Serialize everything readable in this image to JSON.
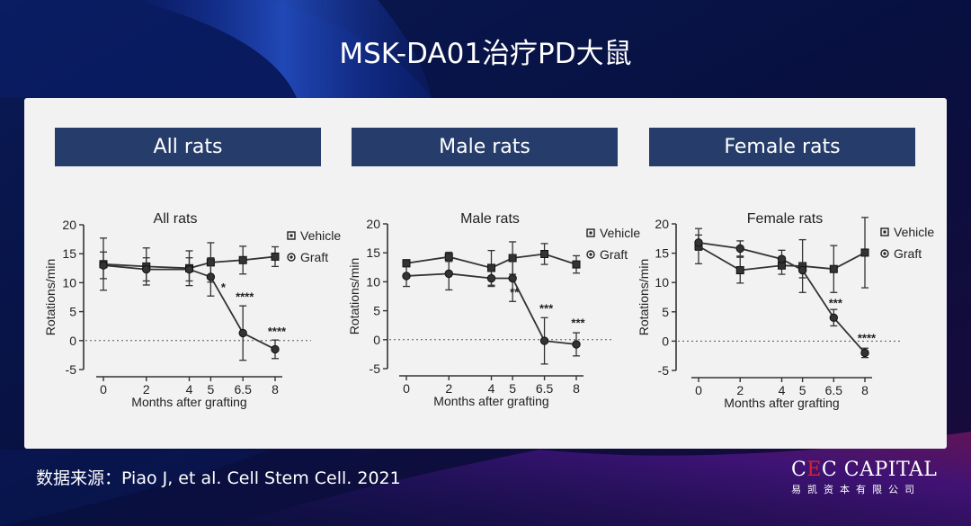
{
  "page": {
    "title": "MSK-DA01治疗PD大鼠"
  },
  "headers": [
    "All rats",
    "Male rats",
    "Female rats"
  ],
  "source": "数据来源：Piao J, et al. Cell Stem Cell. 2021",
  "logo": {
    "prefix": "C",
    "accent": "E",
    "suffix": "C CAPITAL",
    "sub": "易凯资本有限公司"
  },
  "colors": {
    "header": "#263d6b",
    "card": "#f2f2f2",
    "accent": "#d6232d"
  },
  "chart_data": [
    {
      "type": "line",
      "title": "All rats",
      "xlabel": "Months after grafting",
      "ylabel": "Rotations/min",
      "x": [
        0,
        2,
        4,
        5,
        6.5,
        8
      ],
      "xticks": [
        "0",
        "2",
        "4",
        "5",
        "6.5",
        "8"
      ],
      "yticks": [
        -5,
        0,
        5,
        10,
        15,
        20
      ],
      "ylim": [
        -5,
        20
      ],
      "reference_line": 0,
      "series": [
        {
          "name": "Vehicle",
          "marker": "square",
          "x": [
            0,
            2,
            4,
            5,
            6.5,
            8
          ],
          "values": [
            13.2,
            12.8,
            12.5,
            13.5,
            13.9,
            14.5
          ],
          "err": [
            4.5,
            3.2,
            3.0,
            3.4,
            2.4,
            1.7
          ]
        },
        {
          "name": "Graft",
          "marker": "circle",
          "x": [
            0,
            2,
            4,
            5,
            6.5,
            8
          ],
          "values": [
            13.0,
            12.3,
            12.3,
            11.0,
            1.3,
            -1.5
          ],
          "err": [
            2.3,
            2.0,
            2.0,
            3.3,
            4.7,
            1.6
          ]
        }
      ],
      "annotations": [
        {
          "x": 5,
          "text": "*",
          "y": 8.5
        },
        {
          "x": 6.5,
          "text": "****",
          "y": 6.9
        },
        {
          "x": 8,
          "text": "****",
          "y": 0.9
        }
      ]
    },
    {
      "type": "line",
      "title": "Male rats",
      "xlabel": "Months after grafting",
      "ylabel": "Rotations/min",
      "x": [
        0,
        2,
        4,
        5,
        6.5,
        8
      ],
      "xticks": [
        "0",
        "2",
        "4",
        "5",
        "6.5",
        "8"
      ],
      "yticks": [
        -5,
        0,
        5,
        10,
        15,
        20
      ],
      "ylim": [
        -5,
        20
      ],
      "reference_line": 0,
      "series": [
        {
          "name": "Vehicle",
          "marker": "square",
          "x": [
            0,
            2,
            4,
            5,
            6.5,
            8
          ],
          "values": [
            13.2,
            14.3,
            12.4,
            14.1,
            14.8,
            13.0
          ],
          "err": [
            0.6,
            0.8,
            3.0,
            2.8,
            1.8,
            1.5
          ]
        },
        {
          "name": "Graft",
          "marker": "circle",
          "x": [
            0,
            2,
            4,
            5,
            6.5,
            8
          ],
          "values": [
            11.0,
            11.4,
            10.6,
            10.6,
            -0.2,
            -0.8
          ],
          "err": [
            1.8,
            2.8,
            1.4,
            4.0,
            4.0,
            2.0
          ]
        }
      ],
      "annotations": [
        {
          "x": 5,
          "text": "**",
          "y": 7.5
        },
        {
          "x": 6.5,
          "text": "***",
          "y": 4.7
        },
        {
          "x": 8,
          "text": "***",
          "y": 2.2
        }
      ]
    },
    {
      "type": "line",
      "title": "Female rats",
      "xlabel": "Months after grafting",
      "ylabel": "Rotations/min",
      "x": [
        0,
        2,
        4,
        5,
        6.5,
        8
      ],
      "xticks": [
        "0",
        "2",
        "4",
        "5",
        "6.5",
        "8"
      ],
      "yticks": [
        -5,
        0,
        5,
        10,
        15,
        20
      ],
      "ylim": [
        -5,
        20
      ],
      "reference_line": 0,
      "series": [
        {
          "name": "Vehicle",
          "marker": "square",
          "x": [
            0,
            2,
            4,
            5,
            6.5,
            8
          ],
          "values": [
            16.2,
            12.1,
            12.9,
            12.8,
            12.3,
            15.1
          ],
          "err": [
            3.0,
            2.2,
            1.5,
            4.5,
            4.0,
            6.0
          ]
        },
        {
          "name": "Graft",
          "marker": "circle",
          "x": [
            0,
            2,
            4,
            5,
            6.5,
            8
          ],
          "values": [
            16.8,
            15.8,
            14.0,
            12.1,
            4.0,
            -2.0
          ],
          "err": [
            1.3,
            1.3,
            1.5,
            1.3,
            1.4,
            0.8
          ]
        }
      ],
      "annotations": [
        {
          "x": 6.5,
          "text": "***",
          "y": 5.8
        },
        {
          "x": 8,
          "text": "****",
          "y": -0.2
        }
      ]
    }
  ]
}
